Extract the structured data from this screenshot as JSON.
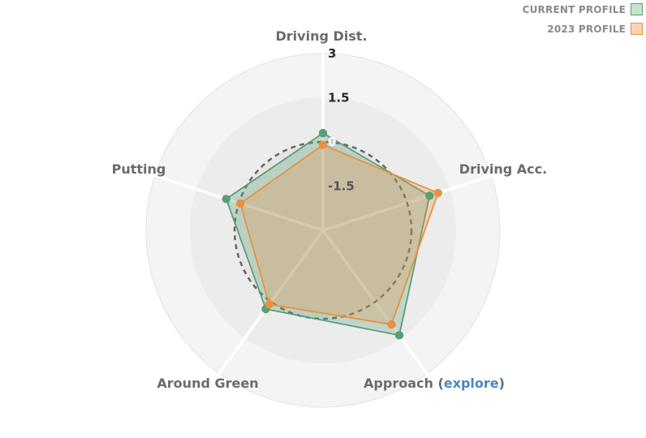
{
  "legend": {
    "items": [
      {
        "label": "CURRENT PROFILE",
        "color": "#5b9e76",
        "fill": "#c8e2d2"
      },
      {
        "label": "2023 PROFILE",
        "color": "#e8913f",
        "fill": "#f9d4b2"
      }
    ]
  },
  "colors": {
    "ring_outer": "#f4f4f4",
    "ring_mid": "#ececec",
    "ring_inner": "#e5e5e5",
    "ring_stroke": "#e2e2e2",
    "spoke": "#ffffff",
    "baseline": "#666666",
    "explore_link": "#4a86c5"
  },
  "chart_data": {
    "type": "radar",
    "axes": [
      "Driving Dist.",
      "Driving Acc.",
      "Approach",
      "Around Green",
      "Putting"
    ],
    "approach_label_prefix": "Approach (",
    "approach_link_text": "explore",
    "approach_label_suffix": ")",
    "rlim": [
      -3,
      3
    ],
    "ticks": [
      {
        "value": 3,
        "label": "3",
        "color": "#2a2a2a"
      },
      {
        "value": 1.5,
        "label": "1.5",
        "color": "#2a2a2a"
      },
      {
        "value": 0,
        "label": "0",
        "color": "#ffffff"
      },
      {
        "value": -1.5,
        "label": "-1.5",
        "color": "#555555"
      }
    ],
    "baseline_value": 0,
    "series": [
      {
        "name": "CURRENT PROFILE",
        "values": [
          0.3,
          0.8,
          1.4,
          0.3,
          0.45
        ]
      },
      {
        "name": "2023 PROFILE",
        "values": [
          -0.1,
          1.1,
          0.95,
          0.1,
          -0.05
        ]
      }
    ]
  }
}
